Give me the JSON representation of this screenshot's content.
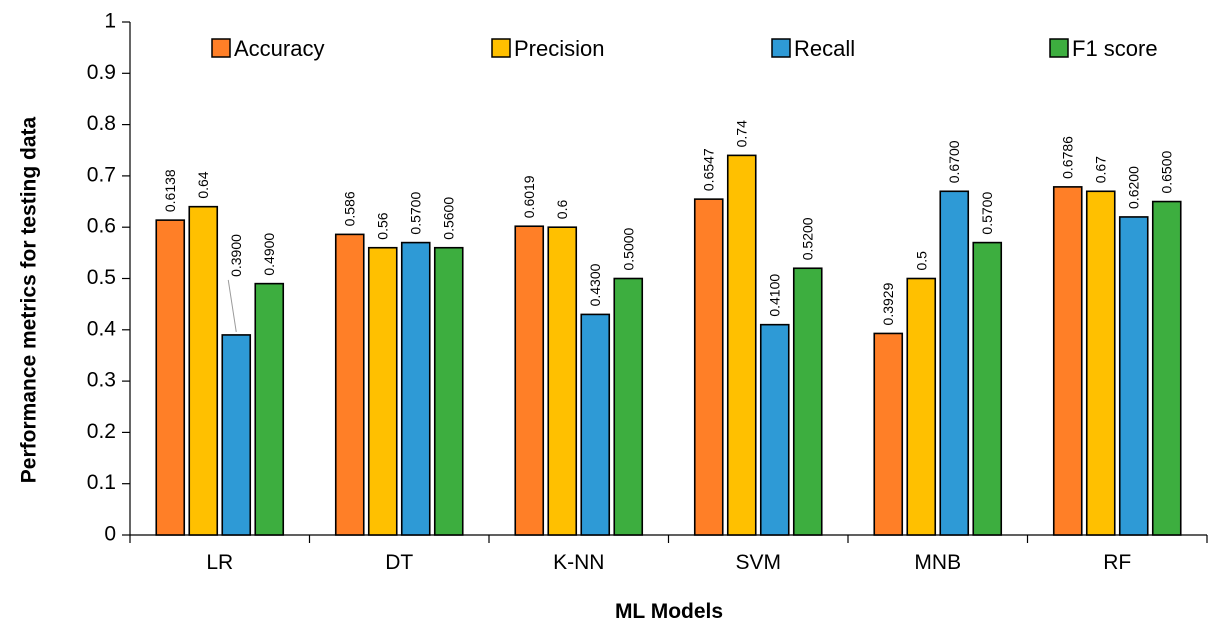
{
  "chart_data": {
    "type": "bar",
    "categories": [
      "LR",
      "DT",
      "K-NN",
      "SVM",
      "MNB",
      "RF"
    ],
    "series": [
      {
        "name": "Accuracy",
        "color": "#FF7F27",
        "values": [
          0.6138,
          0.586,
          0.6019,
          0.6547,
          0.3929,
          0.6786
        ],
        "labels": [
          "0.6138",
          "0.586",
          "0.6019",
          "0.6547",
          "0.3929",
          "0.6786"
        ]
      },
      {
        "name": "Precision",
        "color": "#FFC000",
        "values": [
          0.64,
          0.56,
          0.6,
          0.74,
          0.5,
          0.67
        ],
        "labels": [
          "0.64",
          "0.56",
          "0.6",
          "0.74",
          "0.5",
          "0.67"
        ]
      },
      {
        "name": "Recall",
        "color": "#2E9AD6",
        "values": [
          0.39,
          0.57,
          0.43,
          0.41,
          0.67,
          0.62
        ],
        "labels": [
          "0.3900",
          "0.5700",
          "0.4300",
          "0.4100",
          "0.6700",
          "0.6200"
        ]
      },
      {
        "name": "F1 score",
        "color": "#3DAE3F",
        "values": [
          0.49,
          0.56,
          0.5,
          0.52,
          0.57,
          0.65
        ],
        "labels": [
          "0.4900",
          "0.5600",
          "0.5000",
          "0.5200",
          "0.5700",
          "0.6500"
        ]
      }
    ],
    "title": "",
    "xlabel": "ML Models",
    "ylabel": "Performance metrics for testing data",
    "ylim": [
      0,
      1
    ],
    "yticks": [
      "0",
      "0.1",
      "0.2",
      "0.3",
      "0.4",
      "0.5",
      "0.6",
      "0.7",
      "0.8",
      "0.9",
      "1"
    ],
    "grid": false,
    "legend_position": "top"
  }
}
